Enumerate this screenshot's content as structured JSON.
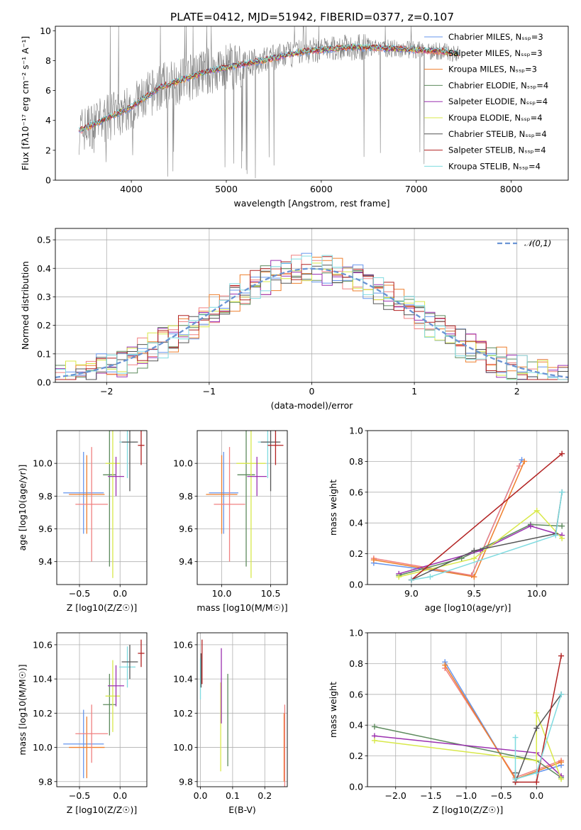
{
  "chart_data": [
    {
      "type": "line",
      "title": "PLATE=0412, MJD=51942, FIBERID=0377, z=0.107",
      "xlabel": "wavelength [Angstrom, rest frame]",
      "ylabel": "Flux [fλ10⁻¹⁷ erg cm⁻² s⁻¹ A⁻¹]",
      "xlim": [
        3200,
        8600
      ],
      "ylim": [
        0,
        10.3
      ],
      "xticks": [
        4000,
        5000,
        6000,
        7000,
        8000
      ],
      "yticks": [
        0,
        2,
        4,
        6,
        8,
        10
      ],
      "grid": false,
      "legend": "upper-right",
      "continuum": {
        "x": [
          3450,
          3700,
          4000,
          4300,
          4800,
          5300,
          5800,
          6300,
          6800,
          7300,
          7500
        ],
        "y": [
          3.3,
          4.0,
          4.9,
          6.2,
          7.3,
          7.9,
          8.6,
          8.9,
          8.8,
          8.6,
          8.4
        ]
      },
      "series": [
        {
          "name": "Chabrier MILES, N_SSP=3",
          "color": "#6495ed"
        },
        {
          "name": "Salpeter MILES, N_SSP=3",
          "color": "#f08080"
        },
        {
          "name": "Kroupa MILES, N_SSP=3",
          "color": "#ee7f2d"
        },
        {
          "name": "Chabrier ELODIE, N_SSP=4",
          "color": "#5e8b5e"
        },
        {
          "name": "Salpeter ELODIE, N_SSP=4",
          "color": "#9b30b0"
        },
        {
          "name": "Kroupa ELODIE, N_SSP=4",
          "color": "#d8e84a"
        },
        {
          "name": "Chabrier STELIB, N_SSP=4",
          "color": "#555555"
        },
        {
          "name": "Salpeter STELIB, N_SSP=4",
          "color": "#b22222"
        },
        {
          "name": "Kroupa STELIB, N_SSP=4",
          "color": "#7fdbe0"
        }
      ]
    },
    {
      "type": "step",
      "xlabel": "(data-model)/error",
      "ylabel": "Normed distribution",
      "xlim": [
        -2.5,
        2.5
      ],
      "ylim": [
        0,
        0.54
      ],
      "xticks": [
        -2,
        -1,
        0,
        1,
        2
      ],
      "yticks": [
        0.0,
        0.1,
        0.2,
        0.3,
        0.4,
        0.5
      ],
      "grid": true,
      "legend": "upper-right",
      "gauss_label": "𝒩(0,1)",
      "histogram_colors": [
        "#6495ed",
        "#f08080",
        "#ee7f2d",
        "#5e8b5e",
        "#9b30b0",
        "#d8e84a",
        "#555555",
        "#b22222",
        "#7fdbe0"
      ]
    },
    {
      "type": "errorbar",
      "xlabel": "Z [log10(Z/Z☉)]",
      "ylabel": "age  [log10(age/yr)]",
      "xlim": [
        -0.78,
        0.33
      ],
      "ylim": [
        9.26,
        10.2
      ],
      "xticks": [
        -0.5,
        0.0
      ],
      "yticks": [
        9.4,
        9.6,
        9.8,
        10.0
      ],
      "grid": true,
      "points": [
        {
          "color": "#6495ed",
          "x": -0.45,
          "xerr": 0.25,
          "y": 9.82,
          "yerr": 0.25
        },
        {
          "color": "#ee7f2d",
          "x": -0.41,
          "xerr": 0.22,
          "y": 9.81,
          "yerr": 0.24
        },
        {
          "color": "#f08080",
          "x": -0.35,
          "xerr": 0.2,
          "y": 9.75,
          "yerr": 0.35
        },
        {
          "color": "#5e8b5e",
          "x": -0.13,
          "xerr": 0.08,
          "y": 9.93,
          "yerr": 0.56
        },
        {
          "color": "#d8e84a",
          "x": -0.09,
          "xerr": 0.09,
          "y": 10.0,
          "yerr": 0.7
        },
        {
          "color": "#9b30b0",
          "x": -0.05,
          "xerr": 0.1,
          "y": 9.92,
          "yerr": 0.12
        },
        {
          "color": "#7fdbe0",
          "x": 0.09,
          "xerr": 0.1,
          "y": 10.13,
          "yerr": 0.22
        },
        {
          "color": "#555555",
          "x": 0.12,
          "xerr": 0.1,
          "y": 10.13,
          "yerr": 0.3
        },
        {
          "color": "#b22222",
          "x": 0.26,
          "xerr": 0.04,
          "y": 10.11,
          "yerr": 0.12
        }
      ]
    },
    {
      "type": "errorbar",
      "xlabel": "mass [log10(M/M☉)]",
      "ylabel": "",
      "xlim": [
        9.75,
        10.67
      ],
      "ylim": [
        9.26,
        10.2
      ],
      "xticks": [
        10.0,
        10.5
      ],
      "yticks": [
        9.4,
        9.6,
        9.8,
        10.0
      ],
      "grid": true,
      "points": [
        {
          "color": "#6495ed",
          "x": 10.02,
          "xerr": 0.15,
          "y": 9.82,
          "yerr": 0.25
        },
        {
          "color": "#ee7f2d",
          "x": 10.0,
          "xerr": 0.16,
          "y": 9.81,
          "yerr": 0.24
        },
        {
          "color": "#f08080",
          "x": 10.08,
          "xerr": 0.16,
          "y": 9.75,
          "yerr": 0.35
        },
        {
          "color": "#5e8b5e",
          "x": 10.25,
          "xerr": 0.09,
          "y": 9.93,
          "yerr": 0.56
        },
        {
          "color": "#d8e84a",
          "x": 10.3,
          "xerr": 0.15,
          "y": 10.0,
          "yerr": 0.7
        },
        {
          "color": "#9b30b0",
          "x": 10.36,
          "xerr": 0.1,
          "y": 9.92,
          "yerr": 0.12
        },
        {
          "color": "#7fdbe0",
          "x": 10.47,
          "xerr": 0.1,
          "y": 10.13,
          "yerr": 0.22
        },
        {
          "color": "#555555",
          "x": 10.5,
          "xerr": 0.1,
          "y": 10.13,
          "yerr": 0.3
        },
        {
          "color": "#b22222",
          "x": 10.55,
          "xerr": 0.08,
          "y": 10.11,
          "yerr": 0.12
        }
      ]
    },
    {
      "type": "line",
      "xlabel": "age  [log10(age/yr)]",
      "ylabel": "mass weight",
      "xlim": [
        8.65,
        10.25
      ],
      "ylim": [
        0.0,
        1.0
      ],
      "xticks": [
        9.0,
        9.5,
        10.0
      ],
      "yticks": [
        0.0,
        0.2,
        0.4,
        0.6,
        0.8,
        1.0
      ],
      "grid": true,
      "series": [
        {
          "color": "#6495ed",
          "x": [
            8.7,
            9.48,
            9.88
          ],
          "y": [
            0.14,
            0.06,
            0.81
          ]
        },
        {
          "color": "#f08080",
          "x": [
            8.7,
            9.48,
            9.86
          ],
          "y": [
            0.17,
            0.06,
            0.77
          ]
        },
        {
          "color": "#ee7f2d",
          "x": [
            8.7,
            9.5,
            9.9
          ],
          "y": [
            0.16,
            0.05,
            0.8
          ]
        },
        {
          "color": "#5e8b5e",
          "x": [
            8.9,
            9.4,
            9.95,
            10.2
          ],
          "y": [
            0.06,
            0.17,
            0.39,
            0.38
          ]
        },
        {
          "color": "#9b30b0",
          "x": [
            8.9,
            9.55,
            9.95,
            10.2
          ],
          "y": [
            0.07,
            0.22,
            0.38,
            0.32
          ]
        },
        {
          "color": "#d8e84a",
          "x": [
            8.9,
            9.5,
            10.0,
            10.2
          ],
          "y": [
            0.05,
            0.17,
            0.48,
            0.3
          ]
        },
        {
          "color": "#555555",
          "x": [
            9.0,
            9.5,
            10.15,
            10.2
          ],
          "y": [
            0.03,
            0.22,
            0.33,
            0.6
          ]
        },
        {
          "color": "#b22222",
          "x": [
            9.0,
            10.2
          ],
          "y": [
            0.03,
            0.85
          ]
        },
        {
          "color": "#7fdbe0",
          "x": [
            9.0,
            9.15,
            10.15,
            10.2
          ],
          "y": [
            0.03,
            0.05,
            0.32,
            0.6
          ]
        }
      ]
    },
    {
      "type": "errorbar",
      "xlabel": "Z [log10(Z/Z☉)]",
      "ylabel": "mass [log10(M/M☉)]",
      "xlim": [
        -0.78,
        0.33
      ],
      "ylim": [
        9.77,
        10.67
      ],
      "xticks": [
        -0.5,
        0.0
      ],
      "yticks": [
        9.8,
        10.0,
        10.2,
        10.4,
        10.6
      ],
      "grid": true,
      "points": [
        {
          "color": "#6495ed",
          "x": -0.45,
          "xerr": 0.25,
          "y": 10.02,
          "yerr": 0.2
        },
        {
          "color": "#ee7f2d",
          "x": -0.41,
          "xerr": 0.22,
          "y": 10.0,
          "yerr": 0.18
        },
        {
          "color": "#f08080",
          "x": -0.35,
          "xerr": 0.2,
          "y": 10.08,
          "yerr": 0.17
        },
        {
          "color": "#5e8b5e",
          "x": -0.13,
          "xerr": 0.08,
          "y": 10.25,
          "yerr": 0.18
        },
        {
          "color": "#d8e84a",
          "x": -0.09,
          "xerr": 0.09,
          "y": 10.3,
          "yerr": 0.21
        },
        {
          "color": "#9b30b0",
          "x": -0.05,
          "xerr": 0.1,
          "y": 10.36,
          "yerr": 0.12
        },
        {
          "color": "#7fdbe0",
          "x": 0.09,
          "xerr": 0.1,
          "y": 10.47,
          "yerr": 0.12
        },
        {
          "color": "#555555",
          "x": 0.12,
          "xerr": 0.1,
          "y": 10.5,
          "yerr": 0.1
        },
        {
          "color": "#b22222",
          "x": 0.26,
          "xerr": 0.04,
          "y": 10.55,
          "yerr": 0.08
        }
      ]
    },
    {
      "type": "errorbar",
      "xlabel": "E(B-V)",
      "ylabel": "",
      "xlim": [
        -0.01,
        0.27
      ],
      "ylim": [
        9.77,
        10.67
      ],
      "xticks": [
        0.0,
        0.1,
        0.2
      ],
      "yticks": [
        9.8,
        10.0,
        10.2,
        10.4,
        10.6
      ],
      "grid": true,
      "points": [
        {
          "color": "#7fdbe0",
          "x": 0.0,
          "xerr": 0.0,
          "y": 10.4,
          "yerr": 0.12
        },
        {
          "color": "#555555",
          "x": 0.002,
          "xerr": 0.0,
          "y": 10.45,
          "yerr": 0.1
        },
        {
          "color": "#b22222",
          "x": 0.005,
          "xerr": 0.0,
          "y": 10.5,
          "yerr": 0.13
        },
        {
          "color": "#d8e84a",
          "x": 0.063,
          "xerr": 0.0,
          "y": 10.12,
          "yerr": 0.26
        },
        {
          "color": "#9b30b0",
          "x": 0.065,
          "xerr": 0.0,
          "y": 10.36,
          "yerr": 0.22
        },
        {
          "color": "#5e8b5e",
          "x": 0.085,
          "xerr": 0.0,
          "y": 10.16,
          "yerr": 0.27
        },
        {
          "color": "#ee7f2d",
          "x": 0.26,
          "xerr": 0.0,
          "y": 10.0,
          "yerr": 0.2
        },
        {
          "color": "#f08080",
          "x": 0.262,
          "xerr": 0.0,
          "y": 10.0,
          "yerr": 0.25
        }
      ]
    },
    {
      "type": "line",
      "xlabel": "Z [log10(Z/Z☉)]",
      "ylabel": "mass weight",
      "xlim": [
        -2.4,
        0.45
      ],
      "ylim": [
        0.0,
        1.0
      ],
      "xticks": [
        -2.0,
        -1.5,
        -1.0,
        -0.5,
        0.0
      ],
      "yticks": [
        0.0,
        0.2,
        0.4,
        0.6,
        0.8,
        1.0
      ],
      "grid": true,
      "series": [
        {
          "color": "#6495ed",
          "x": [
            -1.3,
            -0.3,
            0.35
          ],
          "y": [
            0.81,
            0.05,
            0.14
          ]
        },
        {
          "color": "#f08080",
          "x": [
            -1.3,
            -0.3,
            0.35
          ],
          "y": [
            0.77,
            0.06,
            0.17
          ]
        },
        {
          "color": "#ee7f2d",
          "x": [
            -1.3,
            -0.3,
            0.35
          ],
          "y": [
            0.79,
            0.05,
            0.16
          ]
        },
        {
          "color": "#5e8b5e",
          "x": [
            -2.3,
            0.0,
            0.35
          ],
          "y": [
            0.39,
            0.17,
            0.06
          ]
        },
        {
          "color": "#9b30b0",
          "x": [
            -2.3,
            0.0,
            0.35
          ],
          "y": [
            0.33,
            0.22,
            0.07
          ]
        },
        {
          "color": "#d8e84a",
          "x": [
            -2.3,
            0.0,
            0.0,
            0.35
          ],
          "y": [
            0.3,
            0.17,
            0.48,
            0.05
          ]
        },
        {
          "color": "#555555",
          "x": [
            -0.3,
            -0.3,
            0.0,
            0.35
          ],
          "y": [
            0.09,
            0.03,
            0.38,
            0.6
          ]
        },
        {
          "color": "#b22222",
          "x": [
            -0.3,
            0.0,
            0.35
          ],
          "y": [
            0.03,
            0.03,
            0.85
          ]
        },
        {
          "color": "#7fdbe0",
          "x": [
            -0.3,
            -0.3,
            0.0,
            0.35
          ],
          "y": [
            0.32,
            0.05,
            0.09,
            0.6
          ]
        }
      ]
    }
  ]
}
